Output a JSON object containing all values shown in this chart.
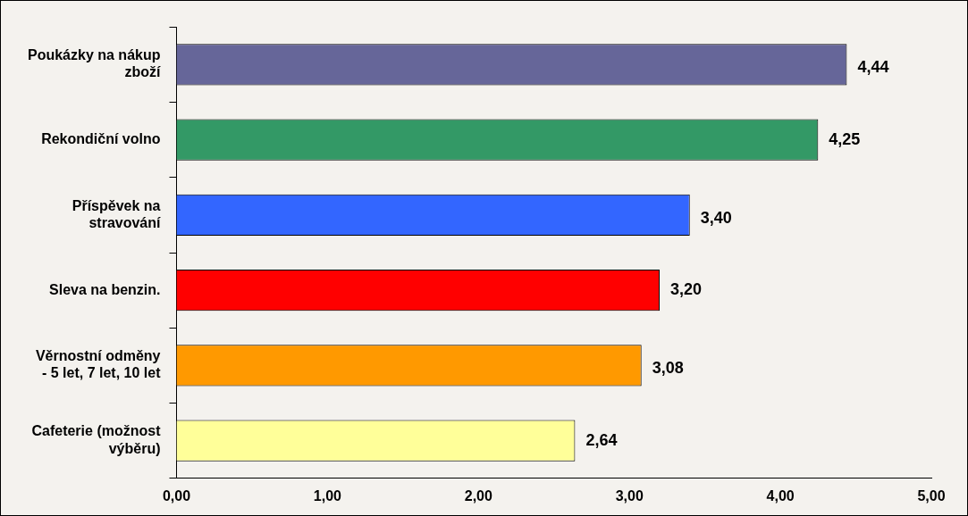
{
  "chart_data": {
    "type": "bar",
    "orientation": "horizontal",
    "categories": [
      "Poukázky na nákup\nzboží",
      "Rekondiční volno",
      "Příspěvek na\nstravování",
      "Sleva na benzin.",
      "Věrnostní odměny\n- 5 let, 7 let, 10 let",
      "Cafeterie (možnost\nvýběru)"
    ],
    "values": [
      4.44,
      4.25,
      3.4,
      3.2,
      3.08,
      2.64
    ],
    "colors": [
      "#666699",
      "#339966",
      "#3366ff",
      "#ff0000",
      "#ff9900",
      "#ffff99"
    ],
    "value_labels": [
      "4,44",
      "4,25",
      "3,40",
      "3,20",
      "3,08",
      "2,64"
    ],
    "xlim": [
      0,
      5
    ],
    "xticks": [
      {
        "value": 0,
        "label": "0,00"
      },
      {
        "value": 1,
        "label": "1,00"
      },
      {
        "value": 2,
        "label": "2,00"
      },
      {
        "value": 3,
        "label": "3,00"
      },
      {
        "value": 4,
        "label": "4,00"
      },
      {
        "value": 5,
        "label": "5,00"
      }
    ],
    "grid": false,
    "legend": false
  }
}
